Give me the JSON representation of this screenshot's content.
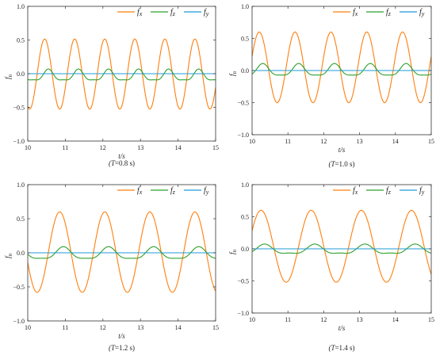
{
  "figure": {
    "colors": {
      "fx": "#ff7f0e",
      "fz": "#2ca02c",
      "fy": "#1f9bd7",
      "axis": "#333333",
      "background": "#ffffff"
    },
    "chart_data": [
      {
        "type": "line",
        "xlabel": "t/s",
        "ylabel": "f",
        "ylabel_sub": "n",
        "caption_prefix": "(T",
        "caption_value": "=0.8 s)",
        "xlim": [
          10,
          15
        ],
        "ylim": [
          -1.0,
          1.0
        ],
        "xticks": [
          10,
          11,
          12,
          13,
          14,
          15
        ],
        "yticks": [
          -1.0,
          -0.5,
          0.0,
          0.5,
          1.0
        ],
        "ytick_labels": [
          "−1.0",
          "−0.5",
          "0.0",
          "0.5",
          "1.0"
        ],
        "legend_position": "top-right",
        "grid": false,
        "series": [
          {
            "name": "f",
            "sub": "x",
            "color": "#ff7f0e",
            "formula": "sin",
            "amplitude": 0.52,
            "period": 0.8,
            "t_peak": 10.45,
            "offset": -0.005
          },
          {
            "name": "f",
            "sub": "z",
            "color": "#2ca02c",
            "formula": "sin",
            "amplitude": 0.08,
            "period": 0.8,
            "t_peak": 10.55,
            "offset": -0.035
          },
          {
            "name": "f",
            "sub": "y",
            "color": "#1f9bd7",
            "formula": "const",
            "offset": 0.0
          }
        ]
      },
      {
        "type": "line",
        "xlabel": "t/s",
        "ylabel": "f",
        "ylabel_sub": "n",
        "caption_prefix": "(T",
        "caption_value": "=1.0 s)",
        "xlim": [
          10,
          15
        ],
        "ylim": [
          -1.0,
          1.0
        ],
        "xticks": [
          10,
          11,
          12,
          13,
          14,
          15
        ],
        "yticks": [
          -1.0,
          -0.5,
          0.0,
          0.5,
          1.0
        ],
        "ytick_labels": [
          "−1.0",
          "−0.5",
          "0.0",
          "0.5",
          "1.0"
        ],
        "legend_position": "top-right",
        "grid": false,
        "series": [
          {
            "name": "f",
            "sub": "x",
            "color": "#ff7f0e",
            "formula": "sin",
            "amplitude": 0.55,
            "period": 1.0,
            "t_peak": 10.2,
            "offset": 0.05
          },
          {
            "name": "f",
            "sub": "z",
            "color": "#2ca02c",
            "formula": "sin",
            "amplitude": 0.09,
            "period": 1.0,
            "t_peak": 10.3,
            "offset": -0.005
          },
          {
            "name": "f",
            "sub": "y",
            "color": "#1f9bd7",
            "formula": "const",
            "offset": 0.0
          }
        ]
      },
      {
        "type": "line",
        "xlabel": "t/s",
        "ylabel": "f",
        "ylabel_sub": "n",
        "caption_prefix": "(T",
        "caption_value": "=1.2 s)",
        "xlim": [
          10,
          15
        ],
        "ylim": [
          -1.0,
          1.0
        ],
        "xticks": [
          10,
          11,
          12,
          13,
          14,
          15
        ],
        "yticks": [
          -1.0,
          -0.5,
          0.0,
          0.5,
          1.0
        ],
        "ytick_labels": [
          "−1.0",
          "−0.5",
          "0.0",
          "0.5",
          "1.0"
        ],
        "legend_position": "top-right",
        "grid": false,
        "series": [
          {
            "name": "f",
            "sub": "x",
            "color": "#ff7f0e",
            "formula": "sin",
            "amplitude": 0.59,
            "period": 1.2,
            "t_peak": 10.85,
            "offset": 0.01
          },
          {
            "name": "f",
            "sub": "z",
            "color": "#2ca02c",
            "formula": "sin",
            "amplitude": 0.085,
            "period": 1.2,
            "t_peak": 10.95,
            "offset": -0.02
          },
          {
            "name": "f",
            "sub": "y",
            "color": "#1f9bd7",
            "formula": "const",
            "offset": 0.0
          }
        ]
      },
      {
        "type": "line",
        "xlabel": "t/s",
        "ylabel": "f",
        "ylabel_sub": "n",
        "caption_prefix": "(T",
        "caption_value": "=1.4 s)",
        "xlim": [
          10,
          15
        ],
        "ylim": [
          -1.0,
          1.0
        ],
        "xticks": [
          10,
          11,
          12,
          13,
          14,
          15
        ],
        "yticks": [
          -1.0,
          -0.5,
          0.0,
          0.5,
          1.0
        ],
        "ytick_labels": [
          "−1.0",
          "−0.5",
          "0.0",
          "0.5",
          "1.0"
        ],
        "legend_position": "top-right",
        "grid": false,
        "series": [
          {
            "name": "f",
            "sub": "x",
            "color": "#ff7f0e",
            "formula": "sin",
            "amplitude": 0.56,
            "period": 1.4,
            "t_peak": 10.25,
            "offset": 0.04
          },
          {
            "name": "f",
            "sub": "z",
            "color": "#2ca02c",
            "formula": "sin",
            "amplitude": 0.07,
            "period": 1.4,
            "t_peak": 10.35,
            "offset": -0.02
          },
          {
            "name": "f",
            "sub": "y",
            "color": "#1f9bd7",
            "formula": "const",
            "offset": 0.0
          }
        ]
      }
    ]
  }
}
